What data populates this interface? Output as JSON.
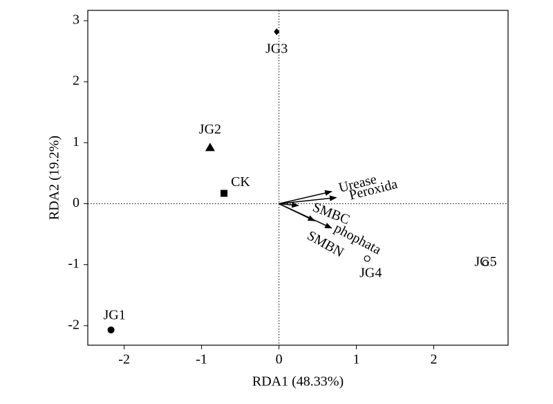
{
  "chart_data": {
    "type": "biplot",
    "xlabel": "RDA1 (48.33%)",
    "ylabel": "RDA2 (19.2%)",
    "xlim": [
      -2.47,
      2.96
    ],
    "ylim": [
      -2.32,
      3.17
    ],
    "xticks": [
      -2,
      -1,
      0,
      1,
      2
    ],
    "yticks": [
      -2,
      -1,
      0,
      1,
      2,
      3
    ],
    "reference_lines": true,
    "samples": {
      "labels": [
        "JG1",
        "JG2",
        "CK",
        "JG3",
        "JG4",
        "JG5"
      ],
      "x": [
        -2.17,
        -0.89,
        -0.71,
        -0.03,
        1.14,
        2.67
      ],
      "y": [
        -2.07,
        0.92,
        0.17,
        2.82,
        -0.9,
        -0.97
      ],
      "markers": [
        "circle",
        "triangle",
        "square",
        "diamond",
        "open-circle",
        "open-circle"
      ],
      "color": "#000000"
    },
    "arrows": {
      "labels": [
        "Urease",
        "Peroxida",
        "SMBC",
        "phophata",
        "SMBN"
      ],
      "x": [
        0.68,
        0.74,
        0.25,
        0.68,
        0.46
      ],
      "y": [
        0.2,
        0.1,
        -0.03,
        -0.4,
        -0.28
      ],
      "color": "#000000"
    }
  }
}
